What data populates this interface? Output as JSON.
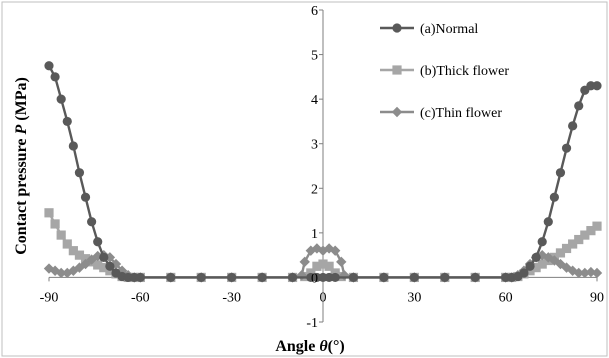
{
  "chart_data": {
    "type": "line",
    "title": "",
    "xlabel": "Angle θ(°)",
    "xlabel_prefix": "Angle ",
    "xlabel_symbol": "θ",
    "xlabel_suffix": "(°)",
    "ylabel": "Contact pressure P (MPa)",
    "ylabel_prefix": "Contact pressure ",
    "ylabel_symbol": "P",
    "ylabel_suffix": " (MPa)",
    "xlim": [
      -90,
      90
    ],
    "ylim": [
      -1,
      6
    ],
    "x_ticks": [
      "-90",
      "-60",
      "-30",
      "0",
      "30",
      "60",
      "90"
    ],
    "y_ticks": [
      "-1",
      "0",
      "1",
      "2",
      "3",
      "4",
      "5",
      "6"
    ],
    "grid": false,
    "legend_position": "top-right",
    "series": [
      {
        "name": "(a)Normal",
        "color": "#595959",
        "marker": "circle",
        "x": [
          -90,
          -88,
          -86,
          -84,
          -82,
          -80,
          -78,
          -76,
          -74,
          -72,
          -70,
          -68,
          -66,
          -64,
          -62,
          -60,
          -50,
          -40,
          -30,
          -20,
          -10,
          -4,
          -2,
          0,
          2,
          4,
          10,
          20,
          30,
          40,
          50,
          60,
          62,
          64,
          66,
          68,
          70,
          72,
          74,
          76,
          78,
          80,
          82,
          84,
          86,
          88,
          90
        ],
        "y": [
          4.75,
          4.5,
          4.0,
          3.5,
          2.95,
          2.35,
          1.8,
          1.25,
          0.8,
          0.45,
          0.25,
          0.1,
          0.02,
          0,
          0,
          0,
          0,
          0,
          0,
          0,
          0,
          0,
          0,
          0,
          0,
          0,
          0,
          0,
          0,
          0,
          0,
          0,
          0,
          0.02,
          0.1,
          0.25,
          0.45,
          0.8,
          1.25,
          1.8,
          2.35,
          2.9,
          3.4,
          3.85,
          4.2,
          4.3,
          4.3
        ]
      },
      {
        "name": "(b)Thick flower",
        "color": "#a6a6a6",
        "marker": "square",
        "x": [
          -90,
          -88,
          -86,
          -84,
          -82,
          -80,
          -78,
          -76,
          -74,
          -72,
          -70,
          -68,
          -66,
          -64,
          -62,
          -60,
          -50,
          -40,
          -30,
          -20,
          -10,
          -6,
          -4,
          -2,
          0,
          2,
          4,
          6,
          10,
          20,
          30,
          40,
          50,
          60,
          62,
          64,
          66,
          68,
          70,
          72,
          74,
          76,
          78,
          80,
          82,
          84,
          86,
          88,
          90
        ],
        "y": [
          1.45,
          1.2,
          0.95,
          0.75,
          0.6,
          0.5,
          0.42,
          0.35,
          0.28,
          0.22,
          0.15,
          0.08,
          0.02,
          0,
          0,
          0,
          0,
          0,
          0,
          0,
          0,
          0.02,
          0.1,
          0.25,
          0.3,
          0.25,
          0.1,
          0.02,
          0,
          0,
          0,
          0,
          0,
          0,
          0,
          0.02,
          0.08,
          0.15,
          0.22,
          0.3,
          0.38,
          0.45,
          0.55,
          0.65,
          0.75,
          0.85,
          0.95,
          1.05,
          1.15
        ]
      },
      {
        "name": "(c)Thin flower",
        "color": "#8c8c8c",
        "marker": "diamond",
        "x": [
          -90,
          -88,
          -86,
          -84,
          -82,
          -80,
          -78,
          -76,
          -74,
          -72,
          -70,
          -68,
          -66,
          -64,
          -62,
          -60,
          -50,
          -40,
          -30,
          -20,
          -10,
          -7,
          -6,
          -4,
          -2,
          0,
          2,
          4,
          6,
          7,
          10,
          20,
          30,
          40,
          50,
          60,
          62,
          64,
          66,
          68,
          70,
          72,
          74,
          76,
          78,
          80,
          82,
          84,
          86,
          88,
          90
        ],
        "y": [
          0.2,
          0.15,
          0.1,
          0.1,
          0.15,
          0.22,
          0.3,
          0.4,
          0.48,
          0.5,
          0.45,
          0.3,
          0.15,
          0.05,
          0,
          0,
          0,
          0,
          0,
          0,
          0,
          0.05,
          0.35,
          0.6,
          0.65,
          0.6,
          0.65,
          0.6,
          0.35,
          0.05,
          0,
          0,
          0,
          0,
          0,
          0,
          0,
          0.05,
          0.15,
          0.3,
          0.45,
          0.5,
          0.45,
          0.38,
          0.3,
          0.22,
          0.15,
          0.1,
          0.1,
          0.12,
          0.1
        ]
      }
    ]
  }
}
